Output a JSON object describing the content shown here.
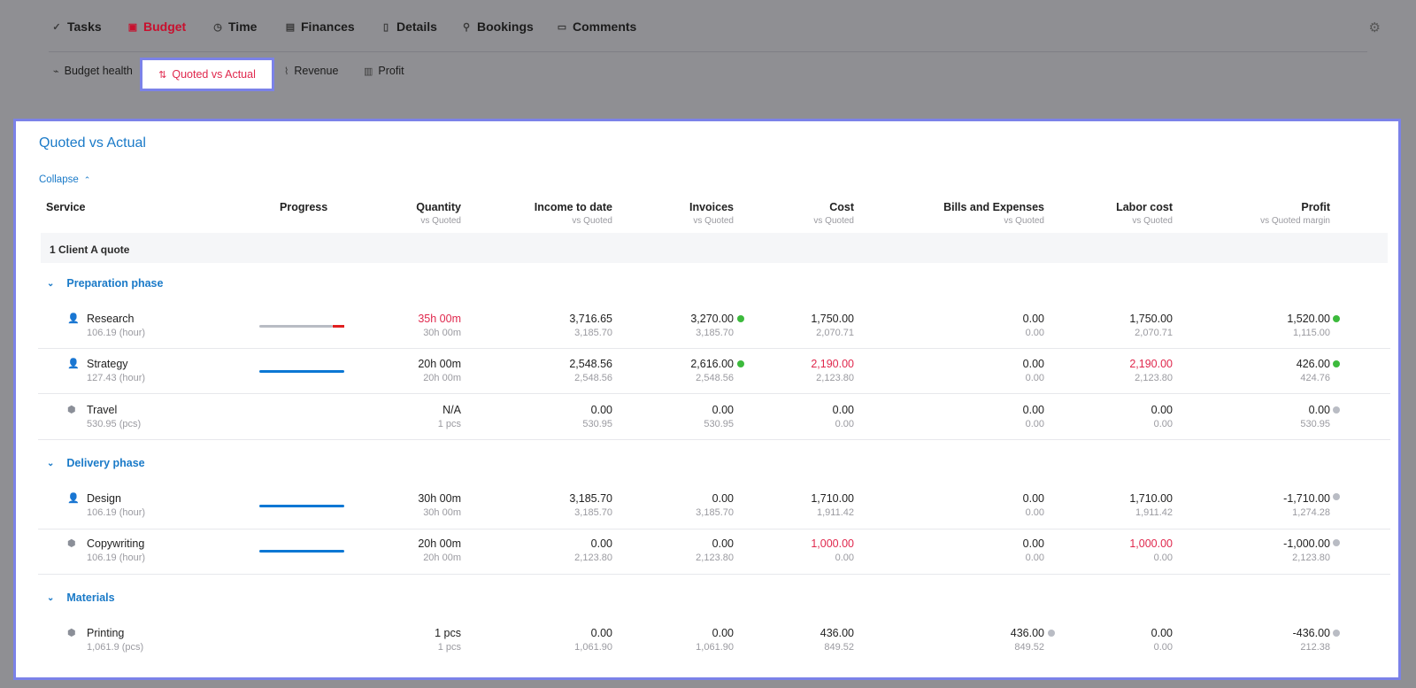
{
  "nav": {
    "tabs": [
      {
        "label": "Tasks",
        "icon": "check-icon"
      },
      {
        "label": "Budget",
        "icon": "piggy-bank-icon",
        "active": true
      },
      {
        "label": "Time",
        "icon": "clock-icon"
      },
      {
        "label": "Finances",
        "icon": "finances-icon"
      },
      {
        "label": "Details",
        "icon": "document-icon"
      },
      {
        "label": "Bookings",
        "icon": "person-icon"
      },
      {
        "label": "Comments",
        "icon": "comment-icon"
      }
    ],
    "subtabs": [
      {
        "label": "Budget health",
        "icon": "pulse-icon"
      },
      {
        "label": "Quoted vs Actual",
        "icon": "compare-icon",
        "active": true
      },
      {
        "label": "Revenue",
        "icon": "revenue-icon"
      },
      {
        "label": "Profit",
        "icon": "profit-icon"
      }
    ]
  },
  "panel": {
    "title": "Quoted vs Actual",
    "collapse_label": "Collapse"
  },
  "columns": {
    "service": "Service",
    "progress": "Progress",
    "quantity": "Quantity",
    "quantity_sub": "vs Quoted",
    "income": "Income to date",
    "income_sub": "vs Quoted",
    "invoices": "Invoices",
    "invoices_sub": "vs Quoted",
    "cost": "Cost",
    "cost_sub": "vs Quoted",
    "bills": "Bills and Expenses",
    "bills_sub": "vs Quoted",
    "labor": "Labor cost",
    "labor_sub": "vs Quoted",
    "profit": "Profit",
    "profit_sub": "vs Quoted margin"
  },
  "group_label": "1 Client A quote",
  "phases": {
    "preparation": "Preparation phase",
    "delivery": "Delivery phase",
    "materials": "Materials"
  },
  "rows": [
    {
      "name": "Research",
      "unit": "106.19 (hour)",
      "qty": "35h 00m",
      "qty_q": "30h 00m",
      "income": "3,716.65",
      "income_q": "3,185.70",
      "invoices": "3,270.00",
      "invoices_q": "3,185.70",
      "cost": "1,750.00",
      "cost_q": "2,070.71",
      "bills": "0.00",
      "bills_q": "0.00",
      "labor": "1,750.00",
      "labor_q": "2,070.71",
      "profit": "1,520.00",
      "profit_q": "1,115.00",
      "progress": 1.17
    },
    {
      "name": "Strategy",
      "unit": "127.43 (hour)",
      "qty": "20h 00m",
      "qty_q": "20h 00m",
      "income": "2,548.56",
      "income_q": "2,548.56",
      "invoices": "2,616.00",
      "invoices_q": "2,548.56",
      "cost": "2,190.00",
      "cost_q": "2,123.80",
      "bills": "0.00",
      "bills_q": "0.00",
      "labor": "2,190.00",
      "labor_q": "2,123.80",
      "profit": "426.00",
      "profit_q": "424.76",
      "progress": 1.0
    },
    {
      "name": "Travel",
      "unit": "530.95 (pcs)",
      "qty": "N/A",
      "qty_q": "1 pcs",
      "income": "0.00",
      "income_q": "530.95",
      "invoices": "0.00",
      "invoices_q": "530.95",
      "cost": "0.00",
      "cost_q": "0.00",
      "bills": "0.00",
      "bills_q": "0.00",
      "labor": "0.00",
      "labor_q": "0.00",
      "profit": "0.00",
      "profit_q": "530.95"
    },
    {
      "name": "Design",
      "unit": "106.19 (hour)",
      "qty": "30h 00m",
      "qty_q": "30h 00m",
      "income": "3,185.70",
      "income_q": "3,185.70",
      "invoices": "0.00",
      "invoices_q": "3,185.70",
      "cost": "1,710.00",
      "cost_q": "1,911.42",
      "bills": "0.00",
      "bills_q": "0.00",
      "labor": "1,710.00",
      "labor_q": "1,911.42",
      "profit": "-1,710.00",
      "profit_q": "1,274.28",
      "progress": 1.0
    },
    {
      "name": "Copywriting",
      "unit": "106.19 (hour)",
      "qty": "20h 00m",
      "qty_q": "20h 00m",
      "income": "0.00",
      "income_q": "2,123.80",
      "invoices": "0.00",
      "invoices_q": "2,123.80",
      "cost": "1,000.00",
      "cost_q": "0.00",
      "bills": "0.00",
      "bills_q": "0.00",
      "labor": "1,000.00",
      "labor_q": "0.00",
      "profit": "-1,000.00",
      "profit_q": "2,123.80",
      "progress": 1.0
    },
    {
      "name": "Printing",
      "unit": "1,061.9 (pcs)",
      "qty": "1 pcs",
      "qty_q": "1 pcs",
      "income": "0.00",
      "income_q": "1,061.90",
      "invoices": "0.00",
      "invoices_q": "1,061.90",
      "cost": "436.00",
      "cost_q": "849.52",
      "bills": "436.00",
      "bills_q": "849.52",
      "labor": "0.00",
      "labor_q": "0.00",
      "profit": "-436.00",
      "profit_q": "212.38"
    }
  ],
  "colors": {
    "accent_blue": "#1a7ac8",
    "alert_red": "#e0284d",
    "highlight": "#7b82e8",
    "status_green": "#3cba3c",
    "status_grey": "#b9bcc4"
  }
}
